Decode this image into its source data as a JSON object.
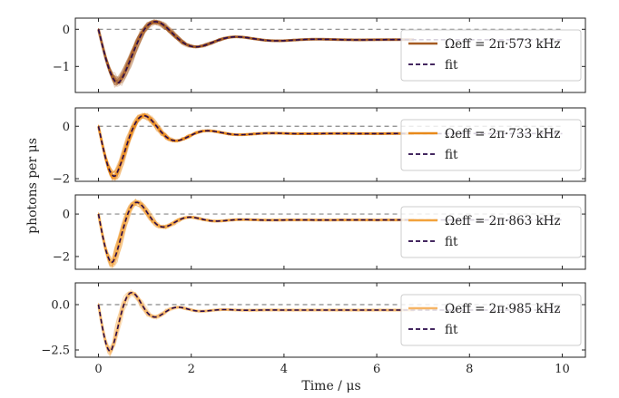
{
  "chart_data": {
    "type": "line",
    "xlabel": "Time / μs",
    "ylabel": "photons per μs",
    "xlim": [
      -0.5,
      10.5
    ],
    "xticks": [
      0,
      2,
      4,
      6,
      8,
      10
    ],
    "fit_label": "fit",
    "panels": [
      {
        "legend_label": "Ωeff = 2π·573 kHz",
        "omega_khz": 573,
        "color": "#a45a22",
        "ylim": [
          -1.7,
          0.3
        ],
        "yticks": [
          0,
          -1
        ],
        "ytick_labels": [
          "0",
          "−1"
        ],
        "fit": {
          "t0": 0.0,
          "min_time": 0.43,
          "min_value": -1.45,
          "steady": -0.28,
          "damping": 0.95,
          "period": 1.75
        },
        "noise": 0.07
      },
      {
        "legend_label": "Ωeff = 2π·733 kHz",
        "omega_khz": 733,
        "color": "#e8891a",
        "ylim": [
          -2.1,
          0.7
        ],
        "yticks": [
          0,
          -2
        ],
        "ytick_labels": [
          "0",
          "−2"
        ],
        "fit": {
          "t0": 0.0,
          "min_time": 0.35,
          "min_value": -1.92,
          "steady": -0.28,
          "damping": 0.75,
          "period": 1.38
        },
        "noise": 0.12
      },
      {
        "legend_label": "Ωeff = 2π·863 kHz",
        "omega_khz": 863,
        "color": "#f2a23c",
        "ylim": [
          -2.6,
          0.9
        ],
        "yticks": [
          0,
          -2
        ],
        "ytick_labels": [
          "0",
          "−2"
        ],
        "fit": {
          "t0": 0.0,
          "min_time": 0.3,
          "min_value": -2.3,
          "steady": -0.28,
          "damping": 0.62,
          "period": 1.15
        },
        "noise": 0.15
      },
      {
        "legend_label": "Ωeff = 2π·985 kHz",
        "omega_khz": 985,
        "color": "#f6b566",
        "ylim": [
          -2.9,
          1.2
        ],
        "yticks": [
          0.0,
          -2.5
        ],
        "ytick_labels": [
          "0.0",
          "−2.5"
        ],
        "fit": {
          "t0": 0.0,
          "min_time": 0.26,
          "min_value": -2.6,
          "steady": -0.3,
          "damping": 0.55,
          "period": 1.0
        },
        "noise": 0.18
      }
    ]
  }
}
